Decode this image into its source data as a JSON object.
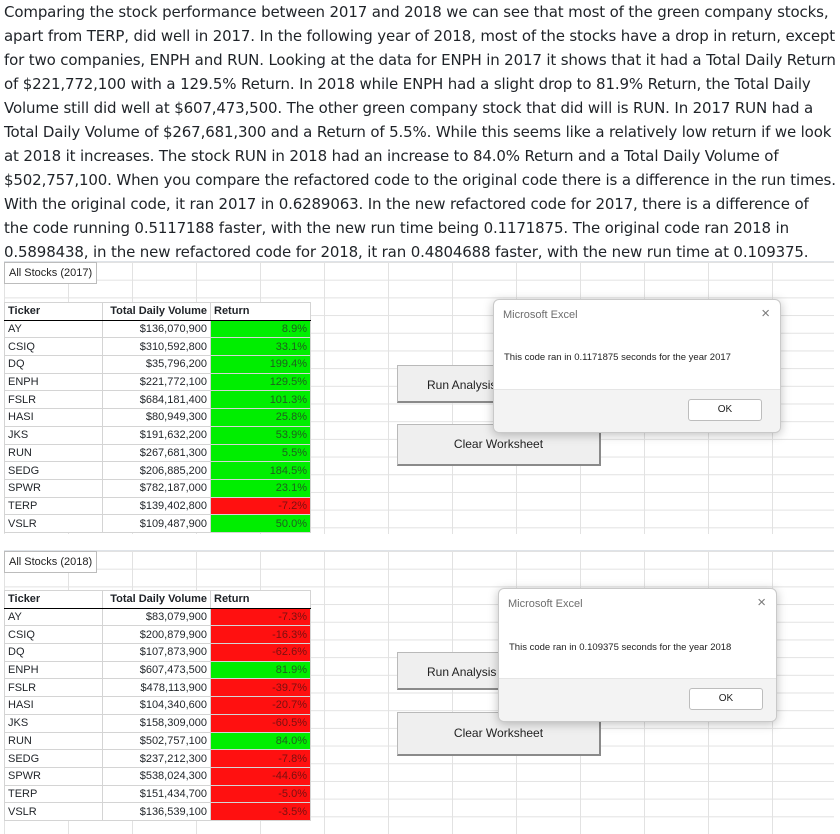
{
  "paragraph": "Comparing the stock performance between 2017 and 2018 we can see that most of the green company stocks, apart from TERP, did well in 2017. In the following year of 2018, most of the stocks have a drop in return, except for two companies, ENPH and RUN. Looking at the data for ENPH in 2017 it shows that it had a Total Daily Return of $221,772,100 with a 129.5% Return. In 2018 while ENPH had a slight drop to 81.9% Return, the Total Daily Volume still did well at $607,473,500. The other green company stock that did will is RUN. In 2017 RUN had a Total Daily Volume of $267,681,300 and a Return of 5.5%. While this seems like a relatively low return if we look at 2018 it increases. The stock RUN in 2018 had an increase to 84.0% Return and a Total Daily Volume of $502,757,100. When you compare the refactored code to the original code there is a difference in the run times. With the original code, it ran 2017 in 0.6289063. In the new refactored code for 2017, there is a difference of the code running 0.5117188 faster, with the new run time being 0.1171875. The original code ran 2018 in 0.5898438, in the new refactored code for 2018, it ran 0.4804688 faster, with the new run time at 0.109375.",
  "colors": {
    "positive": "#00ee00",
    "negative": "#ff1010"
  },
  "sheet2017": {
    "title": "All Stocks (2017)",
    "headers": {
      "ticker": "Ticker",
      "volume": "Total Daily Volume",
      "ret": "Return"
    },
    "rows": [
      {
        "ticker": "AY",
        "volume": "$136,070,900",
        "ret": "8.9%",
        "sign": "pos"
      },
      {
        "ticker": "CSIQ",
        "volume": "$310,592,800",
        "ret": "33.1%",
        "sign": "pos"
      },
      {
        "ticker": "DQ",
        "volume": "$35,796,200",
        "ret": "199.4%",
        "sign": "pos"
      },
      {
        "ticker": "ENPH",
        "volume": "$221,772,100",
        "ret": "129.5%",
        "sign": "pos"
      },
      {
        "ticker": "FSLR",
        "volume": "$684,181,400",
        "ret": "101.3%",
        "sign": "pos"
      },
      {
        "ticker": "HASI",
        "volume": "$80,949,300",
        "ret": "25.8%",
        "sign": "pos"
      },
      {
        "ticker": "JKS",
        "volume": "$191,632,200",
        "ret": "53.9%",
        "sign": "pos"
      },
      {
        "ticker": "RUN",
        "volume": "$267,681,300",
        "ret": "5.5%",
        "sign": "pos"
      },
      {
        "ticker": "SEDG",
        "volume": "$206,885,200",
        "ret": "184.5%",
        "sign": "pos"
      },
      {
        "ticker": "SPWR",
        "volume": "$782,187,000",
        "ret": "23.1%",
        "sign": "pos"
      },
      {
        "ticker": "TERP",
        "volume": "$139,402,800",
        "ret": "-7.2%",
        "sign": "neg"
      },
      {
        "ticker": "VSLR",
        "volume": "$109,487,900",
        "ret": "50.0%",
        "sign": "pos"
      }
    ],
    "buttons": {
      "run": "Run Analysis",
      "clear": "Clear Worksheet"
    },
    "dialog": {
      "title": "Microsoft Excel",
      "close": "×",
      "message": "This code ran in 0.1171875 seconds for the year 2017",
      "ok": "OK"
    }
  },
  "sheet2018": {
    "title": "All Stocks (2018)",
    "headers": {
      "ticker": "Ticker",
      "volume": "Total Daily Volume",
      "ret": "Return"
    },
    "rows": [
      {
        "ticker": "AY",
        "volume": "$83,079,900",
        "ret": "-7.3%",
        "sign": "neg"
      },
      {
        "ticker": "CSIQ",
        "volume": "$200,879,900",
        "ret": "-16.3%",
        "sign": "neg"
      },
      {
        "ticker": "DQ",
        "volume": "$107,873,900",
        "ret": "-62.6%",
        "sign": "neg"
      },
      {
        "ticker": "ENPH",
        "volume": "$607,473,500",
        "ret": "81.9%",
        "sign": "pos"
      },
      {
        "ticker": "FSLR",
        "volume": "$478,113,900",
        "ret": "-39.7%",
        "sign": "neg"
      },
      {
        "ticker": "HASI",
        "volume": "$104,340,600",
        "ret": "-20.7%",
        "sign": "neg"
      },
      {
        "ticker": "JKS",
        "volume": "$158,309,000",
        "ret": "-60.5%",
        "sign": "neg"
      },
      {
        "ticker": "RUN",
        "volume": "$502,757,100",
        "ret": "84.0%",
        "sign": "pos"
      },
      {
        "ticker": "SEDG",
        "volume": "$237,212,300",
        "ret": "-7.8%",
        "sign": "neg"
      },
      {
        "ticker": "SPWR",
        "volume": "$538,024,300",
        "ret": "-44.6%",
        "sign": "neg"
      },
      {
        "ticker": "TERP",
        "volume": "$151,434,700",
        "ret": "-5.0%",
        "sign": "neg"
      },
      {
        "ticker": "VSLR",
        "volume": "$136,539,100",
        "ret": "-3.5%",
        "sign": "neg"
      }
    ],
    "buttons": {
      "run": "Run Analysis",
      "clear": "Clear Worksheet"
    },
    "dialog": {
      "title": "Microsoft Excel",
      "close": "×",
      "message": "This code ran in 0.109375 seconds for the year 2018",
      "ok": "OK"
    }
  }
}
